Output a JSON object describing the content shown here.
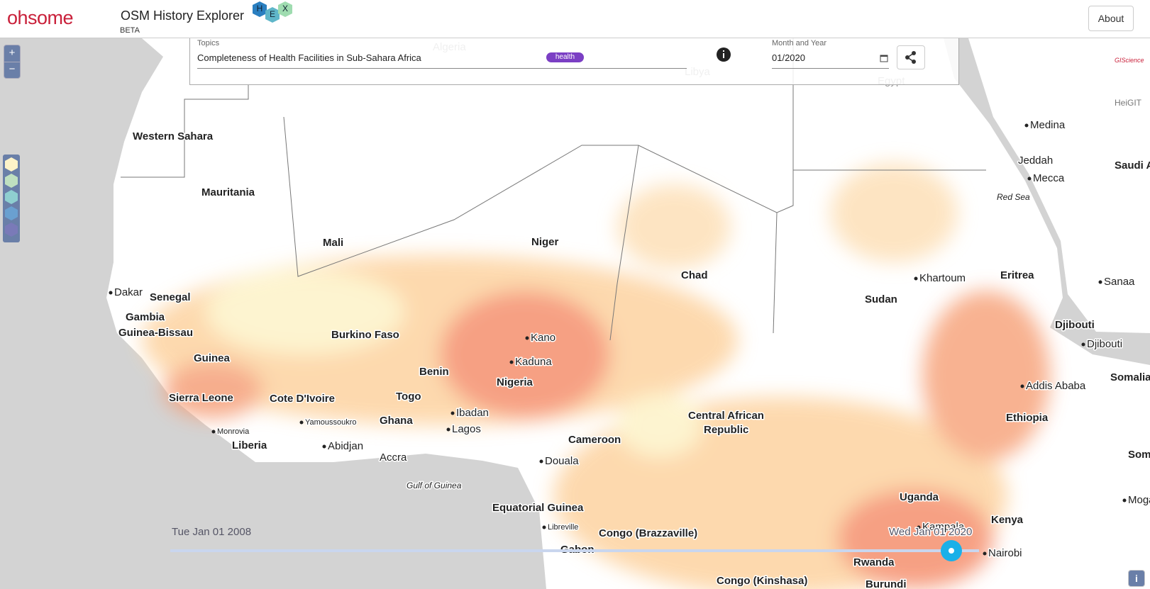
{
  "header": {
    "logo": "ohsome",
    "title": "OSM History Explorer",
    "badge": "BETA",
    "hex": [
      "H",
      "E",
      "X"
    ],
    "about": "About"
  },
  "panel": {
    "topics_label": "Topics",
    "topic": "Completeness of Health Facilities in Sub-Sahara Africa",
    "tag": "health",
    "date_label": "Month and Year",
    "date": "01/2020"
  },
  "controls": {
    "zoom_in": "+",
    "zoom_out": "−",
    "info": "i"
  },
  "logos": {
    "giscience": "GIScience",
    "heigit": "HeiGIT"
  },
  "map": {
    "labels": [
      "Algeria",
      "Libya",
      "Egypt",
      "Western Sahara",
      "Mauritania",
      "Mali",
      "Niger",
      "Chad",
      "Sudan",
      "Khartoum",
      "Medina",
      "Jeddah",
      "Mecca",
      "Saudi A",
      "Red Sea",
      "Sanaa",
      "Eritrea",
      "Djibouti",
      "Djibouti",
      "Dakar",
      "Senegal",
      "Gambia",
      "Guinea-Bissau",
      "Guinea",
      "Burkino Faso",
      "Kano",
      "Kaduna",
      "Nigeria",
      "Benin",
      "Togo",
      "Sierra Leone",
      "Cote D'Ivoire",
      "Yamoussoukro",
      "Ghana",
      "Ibadan",
      "Lagos",
      "Monrovia",
      "Liberia",
      "Abidjan",
      "Accra",
      "Cameroon",
      "Douala",
      "Central African",
      "Republic",
      "Addis Ababa",
      "Ethiopia",
      "Somalia",
      "Gulf of Guinea",
      "Equatorial Guinea",
      "Libreville",
      "Congo (Brazzaville)",
      "Gabon",
      "Uganda",
      "Kampala",
      "Kenya",
      "Nairobi",
      "Rwanda",
      "Burundi",
      "Congo (Kinshasa)",
      "Moga",
      "Som"
    ]
  },
  "timeline": {
    "start": "Tue Jan 01 2008",
    "end": "Wed Jan 01 2020"
  }
}
